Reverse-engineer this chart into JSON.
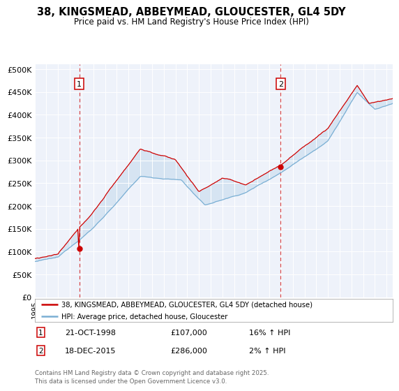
{
  "title": "38, KINGSMEAD, ABBEYMEAD, GLOUCESTER, GL4 5DY",
  "subtitle": "Price paid vs. HM Land Registry's House Price Index (HPI)",
  "ylim": [
    0,
    510000
  ],
  "yticks": [
    0,
    50000,
    100000,
    150000,
    200000,
    250000,
    300000,
    350000,
    400000,
    450000,
    500000
  ],
  "ytick_labels": [
    "£0",
    "£50K",
    "£100K",
    "£150K",
    "£200K",
    "£250K",
    "£300K",
    "£350K",
    "£400K",
    "£450K",
    "£500K"
  ],
  "sale1_year": 1998.8,
  "sale1_price": 107000,
  "sale2_year": 2015.96,
  "sale2_price": 286000,
  "sale1_label": "1",
  "sale2_label": "2",
  "sale1_date": "21-OCT-1998",
  "sale1_amount": "£107,000",
  "sale1_hpi": "16% ↑ HPI",
  "sale2_date": "18-DEC-2015",
  "sale2_amount": "£286,000",
  "sale2_hpi": "2% ↑ HPI",
  "legend_label1": "38, KINGSMEAD, ABBEYMEAD, GLOUCESTER, GL4 5DY (detached house)",
  "legend_label2": "HPI: Average price, detached house, Gloucester",
  "footer": "Contains HM Land Registry data © Crown copyright and database right 2025.\nThis data is licensed under the Open Government Licence v3.0.",
  "line1_color": "#cc0000",
  "line2_color": "#7aafd4",
  "fill_color": "#ccdff0",
  "dashed_color": "#cc0000",
  "plot_bg_color": "#eef2fa"
}
